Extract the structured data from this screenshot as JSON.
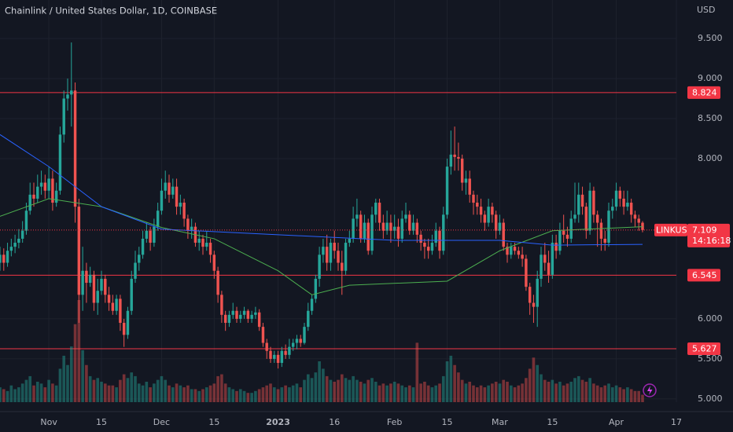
{
  "chart_data": {
    "type": "candlestick",
    "title": "Chainlink / United States Dollar, 1D, COINBASE",
    "currency": "USD",
    "symbol": "LINKUSD",
    "countdown": "14:16:18",
    "up_color": "#26a69a",
    "down_color": "#ef5350",
    "level_color": "#f23645",
    "xlim": [
      "2022-10-19",
      "2023-04-17"
    ],
    "ylim": [
      4.96,
      9.98
    ],
    "yticks": [
      {
        "value": 5.0,
        "label": "5.000"
      },
      {
        "value": 5.5,
        "label": "5.500"
      },
      {
        "value": 6.0,
        "label": "6.000"
      },
      {
        "value": 8.0,
        "label": "8.000"
      },
      {
        "value": 8.5,
        "label": "8.500"
      },
      {
        "value": 9.0,
        "label": "9.000"
      },
      {
        "value": 9.5,
        "label": "9.500"
      }
    ],
    "xticks": [
      {
        "value": "2022-11-01",
        "label": "Nov"
      },
      {
        "value": "2022-11-15",
        "label": "15"
      },
      {
        "value": "2022-12-01",
        "label": "Dec"
      },
      {
        "value": "2022-12-15",
        "label": "15"
      },
      {
        "value": "2023-01-01",
        "label": "2023"
      },
      {
        "value": "2023-01-16",
        "label": "16"
      },
      {
        "value": "2023-02-01",
        "label": "Feb"
      },
      {
        "value": "2023-02-15",
        "label": "15"
      },
      {
        "value": "2023-03-01",
        "label": "Mar"
      },
      {
        "value": "2023-03-15",
        "label": "15"
      },
      {
        "value": "2023-04-01",
        "label": "Apr"
      },
      {
        "value": "2023-04-17",
        "label": "17"
      }
    ],
    "grid": true,
    "levels": [
      8.824,
      6.545,
      5.627
    ],
    "x": [
      "2022-10-19",
      "2022-10-20",
      "2022-10-21",
      "2022-10-22",
      "2022-10-23",
      "2022-10-24",
      "2022-10-25",
      "2022-10-26",
      "2022-10-27",
      "2022-10-28",
      "2022-10-29",
      "2022-10-30",
      "2022-10-31",
      "2022-11-01",
      "2022-11-02",
      "2022-11-03",
      "2022-11-04",
      "2022-11-05",
      "2022-11-06",
      "2022-11-07",
      "2022-11-08",
      "2022-11-09",
      "2022-11-10",
      "2022-11-11",
      "2022-11-12",
      "2022-11-13",
      "2022-11-14",
      "2022-11-15",
      "2022-11-16",
      "2022-11-17",
      "2022-11-18",
      "2022-11-19",
      "2022-11-20",
      "2022-11-21",
      "2022-11-22",
      "2022-11-23",
      "2022-11-24",
      "2022-11-25",
      "2022-11-26",
      "2022-11-27",
      "2022-11-28",
      "2022-11-29",
      "2022-11-30",
      "2022-12-01",
      "2022-12-02",
      "2022-12-03",
      "2022-12-04",
      "2022-12-05",
      "2022-12-06",
      "2022-12-07",
      "2022-12-08",
      "2022-12-09",
      "2022-12-10",
      "2022-12-11",
      "2022-12-12",
      "2022-12-13",
      "2022-12-14",
      "2022-12-15",
      "2022-12-16",
      "2022-12-17",
      "2022-12-18",
      "2022-12-19",
      "2022-12-20",
      "2022-12-21",
      "2022-12-22",
      "2022-12-23",
      "2022-12-24",
      "2022-12-25",
      "2022-12-26",
      "2022-12-27",
      "2022-12-28",
      "2022-12-29",
      "2022-12-30",
      "2022-12-31",
      "2023-01-01",
      "2023-01-02",
      "2023-01-03",
      "2023-01-04",
      "2023-01-05",
      "2023-01-06",
      "2023-01-07",
      "2023-01-08",
      "2023-01-09",
      "2023-01-10",
      "2023-01-11",
      "2023-01-12",
      "2023-01-13",
      "2023-01-14",
      "2023-01-15",
      "2023-01-16",
      "2023-01-17",
      "2023-01-18",
      "2023-01-19",
      "2023-01-20",
      "2023-01-21",
      "2023-01-22",
      "2023-01-23",
      "2023-01-24",
      "2023-01-25",
      "2023-01-26",
      "2023-01-27",
      "2023-01-28",
      "2023-01-29",
      "2023-01-30",
      "2023-01-31",
      "2023-02-01",
      "2023-02-02",
      "2023-02-03",
      "2023-02-04",
      "2023-02-05",
      "2023-02-06",
      "2023-02-07",
      "2023-02-08",
      "2023-02-09",
      "2023-02-10",
      "2023-02-11",
      "2023-02-12",
      "2023-02-13",
      "2023-02-14",
      "2023-02-15",
      "2023-02-16",
      "2023-02-17",
      "2023-02-18",
      "2023-02-19",
      "2023-02-20",
      "2023-02-21",
      "2023-02-22",
      "2023-02-23",
      "2023-02-24",
      "2023-02-25",
      "2023-02-26",
      "2023-02-27",
      "2023-02-28",
      "2023-03-01",
      "2023-03-02",
      "2023-03-03",
      "2023-03-04",
      "2023-03-05",
      "2023-03-06",
      "2023-03-07",
      "2023-03-08",
      "2023-03-09",
      "2023-03-10",
      "2023-03-11",
      "2023-03-12",
      "2023-03-13",
      "2023-03-14",
      "2023-03-15",
      "2023-03-16",
      "2023-03-17",
      "2023-03-18",
      "2023-03-19",
      "2023-03-20",
      "2023-03-21",
      "2023-03-22",
      "2023-03-23",
      "2023-03-24",
      "2023-03-25",
      "2023-03-26",
      "2023-03-27",
      "2023-03-28",
      "2023-03-29",
      "2023-03-30",
      "2023-03-31",
      "2023-04-01",
      "2023-04-02",
      "2023-04-03",
      "2023-04-04",
      "2023-04-05",
      "2023-04-06",
      "2023-04-07",
      "2023-04-08"
    ],
    "open": [
      6.7,
      6.8,
      6.7,
      6.85,
      6.9,
      6.95,
      7.0,
      7.1,
      7.35,
      7.55,
      7.5,
      7.65,
      7.7,
      7.6,
      7.75,
      7.45,
      7.6,
      8.3,
      8.75,
      8.8,
      8.85,
      7.4,
      6.3,
      6.6,
      6.45,
      6.55,
      6.2,
      6.35,
      6.5,
      6.3,
      6.2,
      6.1,
      6.25,
      5.95,
      5.8,
      6.1,
      6.5,
      6.7,
      6.8,
      7.0,
      7.1,
      6.95,
      7.15,
      7.35,
      7.6,
      7.7,
      7.55,
      7.65,
      7.4,
      7.45,
      7.25,
      7.1,
      7.15,
      6.95,
      7.0,
      6.9,
      6.95,
      6.8,
      6.6,
      6.3,
      6.05,
      5.95,
      6.05,
      6.1,
      6.0,
      6.05,
      6.1,
      6.0,
      6.05,
      6.08,
      5.9,
      5.7,
      5.6,
      5.5,
      5.55,
      5.45,
      5.6,
      5.55,
      5.65,
      5.7,
      5.75,
      5.7,
      5.9,
      6.1,
      6.25,
      6.5,
      6.8,
      6.9,
      6.7,
      6.95,
      6.85,
      6.7,
      6.6,
      6.95,
      7.0,
      7.25,
      7.3,
      7.0,
      7.2,
      6.85,
      7.3,
      7.45,
      7.2,
      7.1,
      7.2,
      7.1,
      7.15,
      7.0,
      7.25,
      7.3,
      7.1,
      7.2,
      7.05,
      6.95,
      6.9,
      6.85,
      6.95,
      7.1,
      6.85,
      7.3,
      7.9,
      8.05,
      8.02,
      8.0,
      7.7,
      7.75,
      7.55,
      7.45,
      7.4,
      7.3,
      7.2,
      7.4,
      7.3,
      7.1,
      7.2,
      6.9,
      6.8,
      6.9,
      6.85,
      6.8,
      6.75,
      6.4,
      6.2,
      6.15,
      6.5,
      6.8,
      6.7,
      6.55,
      6.95,
      6.85,
      7.1,
      7.05,
      7.0,
      7.25,
      7.3,
      7.55,
      7.4,
      7.1,
      7.6,
      7.3,
      7.2,
      7.0,
      6.95,
      7.35,
      7.4,
      7.6,
      7.5,
      7.4,
      7.45,
      7.3,
      7.25,
      7.2
    ],
    "high": [
      6.9,
      6.88,
      6.95,
      7.0,
      7.05,
      7.12,
      7.22,
      7.45,
      7.7,
      7.7,
      7.8,
      7.85,
      7.8,
      7.9,
      7.85,
      7.7,
      8.4,
      8.85,
      9.0,
      9.45,
      8.95,
      7.5,
      6.9,
      6.7,
      6.65,
      6.6,
      6.5,
      6.6,
      6.55,
      6.4,
      6.3,
      6.3,
      6.3,
      6.0,
      6.15,
      6.6,
      6.85,
      6.9,
      7.1,
      7.2,
      7.15,
      7.25,
      7.45,
      7.75,
      7.85,
      7.8,
      7.75,
      7.75,
      7.55,
      7.5,
      7.3,
      7.25,
      7.2,
      7.1,
      7.05,
      7.1,
      7.0,
      6.85,
      6.65,
      6.35,
      6.1,
      6.1,
      6.2,
      6.15,
      6.1,
      6.15,
      6.12,
      6.1,
      6.15,
      6.12,
      5.95,
      5.75,
      5.65,
      5.6,
      5.6,
      5.65,
      5.68,
      5.75,
      5.75,
      5.8,
      5.8,
      5.95,
      6.2,
      6.3,
      6.55,
      6.9,
      7.0,
      7.05,
      7.0,
      7.1,
      6.95,
      6.85,
      7.0,
      7.1,
      7.4,
      7.5,
      7.35,
      7.3,
      7.25,
      7.4,
      7.5,
      7.5,
      7.3,
      7.35,
      7.3,
      7.3,
      7.25,
      7.35,
      7.45,
      7.35,
      7.3,
      7.25,
      7.1,
      7.0,
      7.0,
      7.05,
      7.2,
      7.15,
      7.4,
      8.0,
      8.35,
      8.4,
      8.2,
      8.05,
      7.85,
      7.85,
      7.6,
      7.55,
      7.5,
      7.35,
      7.5,
      7.45,
      7.35,
      7.3,
      7.25,
      6.95,
      6.95,
      6.95,
      6.9,
      6.9,
      6.8,
      6.45,
      6.3,
      6.6,
      6.9,
      6.95,
      6.85,
      7.05,
      7.05,
      7.2,
      7.3,
      7.15,
      7.35,
      7.7,
      7.7,
      7.65,
      7.45,
      7.7,
      7.65,
      7.35,
      7.25,
      7.1,
      7.45,
      7.5,
      7.7,
      7.65,
      7.6,
      7.6,
      7.5,
      7.35,
      7.3,
      7.22
    ],
    "low": [
      6.6,
      6.6,
      6.65,
      6.78,
      6.82,
      6.88,
      6.95,
      7.05,
      7.3,
      7.4,
      7.45,
      7.55,
      7.5,
      7.5,
      7.35,
      7.4,
      7.55,
      8.2,
      8.6,
      8.4,
      7.2,
      5.95,
      6.1,
      6.2,
      6.4,
      6.1,
      6.05,
      6.3,
      6.2,
      6.1,
      6.05,
      6.05,
      5.85,
      5.65,
      5.75,
      6.05,
      6.45,
      6.6,
      6.75,
      6.95,
      6.85,
      6.9,
      7.1,
      7.3,
      7.5,
      7.45,
      7.5,
      7.3,
      7.3,
      7.15,
      7.0,
      7.0,
      6.9,
      6.85,
      6.8,
      6.85,
      6.7,
      6.5,
      6.2,
      5.95,
      5.85,
      5.9,
      6.0,
      5.95,
      5.95,
      6.0,
      5.95,
      5.95,
      6.0,
      5.85,
      5.65,
      5.5,
      5.45,
      5.45,
      5.38,
      5.4,
      5.5,
      5.5,
      5.6,
      5.62,
      5.65,
      5.68,
      5.85,
      6.05,
      6.2,
      6.4,
      6.7,
      6.6,
      6.6,
      6.75,
      6.6,
      6.3,
      6.55,
      6.9,
      6.95,
      7.15,
      6.95,
      6.95,
      6.8,
      6.8,
      7.2,
      7.1,
      7.0,
      7.05,
      6.95,
      7.0,
      6.9,
      6.95,
      7.2,
      7.05,
      7.05,
      6.95,
      6.85,
      6.75,
      6.75,
      6.8,
      6.9,
      6.75,
      6.8,
      7.25,
      7.8,
      7.85,
      7.85,
      7.6,
      7.55,
      7.45,
      7.3,
      7.3,
      7.2,
      7.1,
      7.15,
      7.2,
      7.0,
      7.05,
      6.85,
      6.7,
      6.75,
      6.8,
      6.75,
      6.65,
      6.35,
      6.05,
      5.95,
      5.9,
      6.4,
      6.6,
      6.45,
      6.5,
      6.75,
      6.8,
      6.95,
      6.9,
      6.95,
      7.2,
      7.2,
      7.3,
      7.0,
      7.05,
      7.2,
      6.9,
      6.85,
      6.85,
      6.9,
      7.25,
      7.35,
      7.4,
      7.3,
      7.35,
      7.2,
      7.15,
      7.1,
      7.08
    ],
    "close": [
      6.8,
      6.7,
      6.85,
      6.9,
      6.95,
      7.0,
      7.1,
      7.35,
      7.55,
      7.5,
      7.65,
      7.7,
      7.6,
      7.75,
      7.45,
      7.6,
      8.3,
      8.75,
      8.8,
      8.85,
      7.4,
      6.3,
      6.6,
      6.45,
      6.55,
      6.2,
      6.35,
      6.5,
      6.3,
      6.2,
      6.1,
      6.25,
      5.95,
      5.8,
      6.1,
      6.5,
      6.7,
      6.8,
      7.0,
      7.1,
      6.95,
      7.15,
      7.35,
      7.6,
      7.7,
      7.55,
      7.65,
      7.4,
      7.45,
      7.25,
      7.1,
      7.15,
      6.95,
      7.0,
      6.9,
      6.95,
      6.8,
      6.6,
      6.3,
      6.05,
      5.95,
      6.05,
      6.1,
      6.0,
      6.05,
      6.1,
      6.0,
      6.05,
      6.08,
      5.9,
      5.7,
      5.6,
      5.5,
      5.55,
      5.45,
      5.6,
      5.55,
      5.65,
      5.7,
      5.75,
      5.7,
      5.9,
      6.1,
      6.25,
      6.5,
      6.8,
      6.9,
      6.7,
      6.95,
      6.85,
      6.7,
      6.6,
      6.95,
      7.0,
      7.25,
      7.3,
      7.0,
      7.2,
      6.85,
      7.3,
      7.45,
      7.2,
      7.1,
      7.2,
      7.1,
      7.15,
      7.0,
      7.25,
      7.3,
      7.1,
      7.2,
      7.05,
      6.95,
      6.9,
      6.85,
      6.95,
      7.1,
      6.85,
      7.3,
      7.9,
      8.05,
      8.02,
      8.0,
      7.7,
      7.75,
      7.55,
      7.45,
      7.4,
      7.3,
      7.2,
      7.4,
      7.3,
      7.1,
      7.2,
      6.9,
      6.8,
      6.9,
      6.85,
      6.8,
      6.75,
      6.4,
      6.2,
      6.15,
      6.5,
      6.8,
      6.7,
      6.55,
      6.95,
      6.85,
      7.1,
      7.05,
      7.0,
      7.25,
      7.3,
      7.55,
      7.4,
      7.1,
      7.6,
      7.3,
      7.2,
      7.0,
      6.95,
      7.35,
      7.4,
      7.6,
      7.5,
      7.4,
      7.45,
      7.3,
      7.25,
      7.2,
      7.109
    ],
    "volume": [
      8,
      7,
      6,
      9,
      7,
      8,
      10,
      12,
      14,
      9,
      11,
      10,
      8,
      12,
      10,
      9,
      18,
      25,
      20,
      30,
      42,
      55,
      28,
      20,
      14,
      12,
      13,
      11,
      10,
      9,
      9,
      8,
      12,
      15,
      13,
      16,
      14,
      10,
      9,
      11,
      8,
      10,
      12,
      14,
      12,
      9,
      8,
      10,
      9,
      8,
      9,
      7,
      7,
      6,
      7,
      8,
      9,
      10,
      14,
      15,
      10,
      8,
      7,
      6,
      7,
      6,
      5,
      5,
      6,
      7,
      8,
      9,
      10,
      8,
      7,
      8,
      9,
      8,
      9,
      10,
      8,
      12,
      15,
      13,
      16,
      22,
      18,
      14,
      12,
      11,
      12,
      15,
      13,
      12,
      14,
      12,
      11,
      10,
      12,
      13,
      11,
      9,
      10,
      9,
      10,
      11,
      10,
      9,
      8,
      9,
      8,
      32,
      10,
      11,
      9,
      8,
      9,
      10,
      14,
      22,
      25,
      20,
      16,
      12,
      10,
      11,
      9,
      8,
      9,
      8,
      9,
      10,
      11,
      10,
      12,
      11,
      9,
      8,
      9,
      10,
      13,
      18,
      24,
      20,
      15,
      12,
      11,
      12,
      10,
      11,
      9,
      10,
      11,
      13,
      14,
      12,
      11,
      13,
      10,
      9,
      8,
      9,
      10,
      8,
      9,
      8,
      7,
      8,
      7,
      6,
      6,
      4
    ],
    "moving_averages": [
      {
        "color": "#4caf50",
        "x": [
          "2022-10-19",
          "2022-11-01",
          "2022-11-15",
          "2022-12-01",
          "2022-12-15",
          "2023-01-01",
          "2023-01-10",
          "2023-01-20",
          "2023-02-15",
          "2023-03-01",
          "2023-03-15",
          "2023-04-08"
        ],
        "values": [
          7.28,
          7.5,
          7.4,
          7.14,
          7.0,
          6.6,
          6.3,
          6.42,
          6.47,
          6.85,
          7.1,
          7.15
        ]
      },
      {
        "color": "#2962ff",
        "x": [
          "2022-10-19",
          "2022-11-01",
          "2022-11-15",
          "2022-12-01",
          "2023-01-01",
          "2023-02-01",
          "2023-03-01",
          "2023-03-15",
          "2023-04-08"
        ],
        "values": [
          8.3,
          7.9,
          7.4,
          7.12,
          7.05,
          6.98,
          6.98,
          6.92,
          6.93
        ]
      }
    ]
  }
}
